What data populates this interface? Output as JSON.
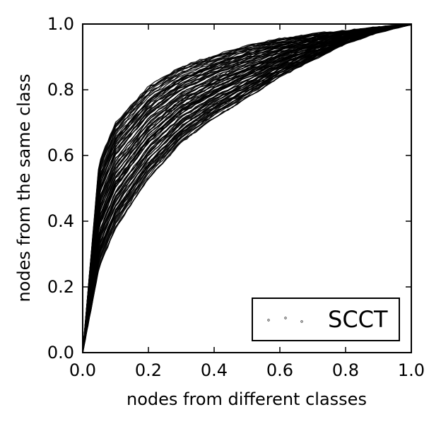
{
  "chart_data": {
    "type": "line",
    "title": "",
    "xlabel": "nodes from different classes",
    "ylabel": "nodes from the same class",
    "xlim": [
      0.0,
      1.0
    ],
    "ylim": [
      0.0,
      1.0
    ],
    "x_ticks": [
      "0.0",
      "0.2",
      "0.4",
      "0.6",
      "0.8",
      "1.0"
    ],
    "y_ticks": [
      "0.0",
      "0.2",
      "0.4",
      "0.6",
      "0.8",
      "1.0"
    ],
    "grid": false,
    "legend": {
      "position": "bottom-right",
      "entries": [
        "SCCT"
      ]
    },
    "series_color": "#000000",
    "envelope": {
      "x": [
        0.0,
        0.05,
        0.1,
        0.2,
        0.3,
        0.4,
        0.5,
        0.6,
        0.7,
        0.8,
        0.9,
        1.0
      ],
      "upper": [
        0.0,
        0.58,
        0.7,
        0.81,
        0.87,
        0.905,
        0.935,
        0.955,
        0.97,
        0.98,
        0.99,
        1.0
      ],
      "lower": [
        0.0,
        0.26,
        0.38,
        0.53,
        0.64,
        0.715,
        0.775,
        0.84,
        0.89,
        0.94,
        0.975,
        1.0
      ]
    }
  }
}
